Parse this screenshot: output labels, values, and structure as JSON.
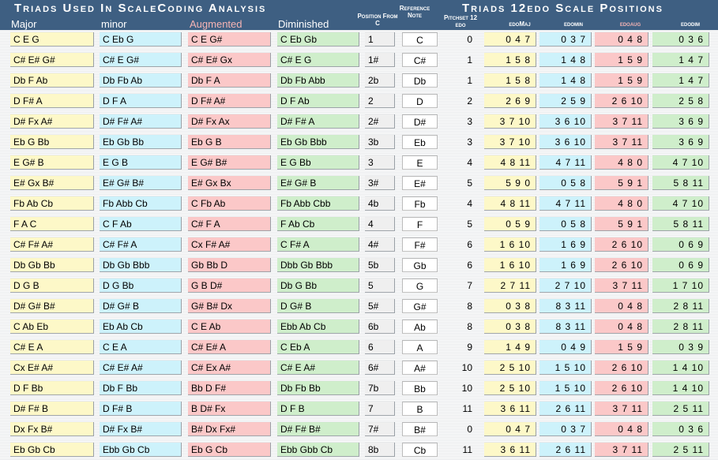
{
  "title_left": "Triads Used In ScaleCoding Analysis",
  "title_right": "Triads 12edo Scale Positions",
  "headers": {
    "major": "Major",
    "minor": "minor",
    "augmented": "Augmented",
    "diminished": "Diminished",
    "position": "Position From C",
    "reference": "Reference Note",
    "pitchset": "Pitchset 12 edo",
    "edomaj": "edoMaj",
    "edomin": "edomin",
    "edoaug": "edoaug",
    "edodim": "edodim"
  },
  "colors": {
    "header_bg": "#3e5f82",
    "major": "#fdf8c8",
    "minor": "#cdf2fb",
    "augmented": "#fbc8c8",
    "diminished": "#cfeecb",
    "augmented_header_text": "#f6b4b4"
  },
  "rows": [
    {
      "maj": "C E G",
      "min": "C Eb G",
      "aug": "C E G#",
      "dim": "C Eb Gb",
      "pos": "1",
      "ref": "C",
      "pit": "0",
      "emaj": "0 4 7",
      "emin": "0 3 7",
      "eaug": "0 4 8",
      "edim": "0 3 6"
    },
    {
      "maj": "C# E# G#",
      "min": "C# E G#",
      "aug": "C# E# Gx",
      "dim": "C# E G",
      "pos": "1#",
      "ref": "C#",
      "pit": "1",
      "emaj": "1 5 8",
      "emin": "1 4 8",
      "eaug": "1 5 9",
      "edim": "1 4 7"
    },
    {
      "maj": "Db F Ab",
      "min": "Db Fb Ab",
      "aug": "Db F A",
      "dim": "Db Fb Abb",
      "pos": "2b",
      "ref": "Db",
      "pit": "1",
      "emaj": "1 5 8",
      "emin": "1 4 8",
      "eaug": "1 5 9",
      "edim": "1 4 7"
    },
    {
      "maj": "D F# A",
      "min": "D F A",
      "aug": "D F# A#",
      "dim": "D F Ab",
      "pos": "2",
      "ref": "D",
      "pit": "2",
      "emaj": "2 6 9",
      "emin": "2 5 9",
      "eaug": "2 6 10",
      "edim": "2 5 8"
    },
    {
      "maj": "D# Fx A#",
      "min": "D# F# A#",
      "aug": "D# Fx Ax",
      "dim": "D# F# A",
      "pos": "2#",
      "ref": "D#",
      "pit": "3",
      "emaj": "3 7 10",
      "emin": "3 6 10",
      "eaug": "3 7 11",
      "edim": "3 6 9"
    },
    {
      "maj": "Eb G Bb",
      "min": "Eb Gb Bb",
      "aug": "Eb G B",
      "dim": "Eb Gb Bbb",
      "pos": "3b",
      "ref": "Eb",
      "pit": "3",
      "emaj": "3 7 10",
      "emin": "3 6 10",
      "eaug": "3 7 11",
      "edim": "3 6 9"
    },
    {
      "maj": "E G# B",
      "min": "E G B",
      "aug": "E G# B#",
      "dim": "E G Bb",
      "pos": "3",
      "ref": "E",
      "pit": "4",
      "emaj": "4 8 11",
      "emin": "4 7 11",
      "eaug": "4 8 0",
      "edim": "4 7 10"
    },
    {
      "maj": "E# Gx B#",
      "min": "E# G# B#",
      "aug": "E# Gx Bx",
      "dim": "E# G# B",
      "pos": "3#",
      "ref": "E#",
      "pit": "5",
      "emaj": "5 9 0",
      "emin": "0 5 8",
      "eaug": "5 9 1",
      "edim": "5 8 11"
    },
    {
      "maj": "Fb Ab Cb",
      "min": "Fb Abb Cb",
      "aug": "C Fb Ab",
      "dim": "Fb Abb Cbb",
      "pos": "4b",
      "ref": "Fb",
      "pit": "4",
      "emaj": "4 8 11",
      "emin": "4 7 11",
      "eaug": "4 8 0",
      "edim": "4 7 10"
    },
    {
      "maj": "F A C",
      "min": "C F Ab",
      "aug": "C# F A",
      "dim": "F Ab Cb",
      "pos": "4",
      "ref": "F",
      "pit": "5",
      "emaj": "0 5 9",
      "emin": "0 5 8",
      "eaug": "5 9 1",
      "edim": "5 8 11"
    },
    {
      "maj": "C# F# A#",
      "min": "C# F# A",
      "aug": "Cx F# A#",
      "dim": "C F# A",
      "pos": "4#",
      "ref": "F#",
      "pit": "6",
      "emaj": "1 6 10",
      "emin": "1 6 9",
      "eaug": "2 6 10",
      "edim": "0 6 9"
    },
    {
      "maj": "Db Gb Bb",
      "min": "Db Gb Bbb",
      "aug": "Gb Bb D",
      "dim": "Dbb Gb Bbb",
      "pos": "5b",
      "ref": "Gb",
      "pit": "6",
      "emaj": "1 6 10",
      "emin": "1 6 9",
      "eaug": "2 6 10",
      "edim": "0 6 9"
    },
    {
      "maj": "D G B",
      "min": "D G Bb",
      "aug": "G B D#",
      "dim": "Db G Bb",
      "pos": "5",
      "ref": "G",
      "pit": "7",
      "emaj": "2 7 11",
      "emin": "2 7 10",
      "eaug": "3 7 11",
      "edim": "1 7 10"
    },
    {
      "maj": "D# G# B#",
      "min": "D# G# B",
      "aug": "G# B# Dx",
      "dim": "D G# B",
      "pos": "5#",
      "ref": "G#",
      "pit": "8",
      "emaj": "0 3 8",
      "emin": "8 3 11",
      "eaug": "0 4 8",
      "edim": "2 8 11"
    },
    {
      "maj": "C Ab Eb",
      "min": "Eb Ab Cb",
      "aug": "C E Ab",
      "dim": "Ebb Ab Cb",
      "pos": "6b",
      "ref": "Ab",
      "pit": "8",
      "emaj": "0 3 8",
      "emin": "8 3 11",
      "eaug": "0 4 8",
      "edim": "2 8 11"
    },
    {
      "maj": "C# E A",
      "min": "C E A",
      "aug": "C# E# A",
      "dim": "C Eb A",
      "pos": "6",
      "ref": "A",
      "pit": "9",
      "emaj": "1 4 9",
      "emin": "0 4 9",
      "eaug": "1 5 9",
      "edim": "0 3 9"
    },
    {
      "maj": "Cx E# A#",
      "min": "C# E# A#",
      "aug": "C# Ex A#",
      "dim": "C# E A#",
      "pos": "6#",
      "ref": "A#",
      "pit": "10",
      "emaj": "2 5 10",
      "emin": "1 5 10",
      "eaug": "2 6 10",
      "edim": "1 4 10"
    },
    {
      "maj": "D F Bb",
      "min": "Db F Bb",
      "aug": "Bb D F#",
      "dim": "Db Fb Bb",
      "pos": "7b",
      "ref": "Bb",
      "pit": "10",
      "emaj": "2 5 10",
      "emin": "1 5 10",
      "eaug": "2 6 10",
      "edim": "1 4 10"
    },
    {
      "maj": "D# F# B",
      "min": "D F# B",
      "aug": "B D# Fx",
      "dim": "D F B",
      "pos": "7",
      "ref": "B",
      "pit": "11",
      "emaj": "3 6 11",
      "emin": "2 6 11",
      "eaug": "3 7 11",
      "edim": "2 5 11"
    },
    {
      "maj": "Dx Fx B#",
      "min": "D# Fx B#",
      "aug": "B# Dx Fx#",
      "dim": "D# F# B#",
      "pos": "7#",
      "ref": "B#",
      "pit": "0",
      "emaj": "0 4 7",
      "emin": "0 3 7",
      "eaug": "0 4 8",
      "edim": "0 3 6"
    },
    {
      "maj": "Eb Gb Cb",
      "min": "Ebb Gb Cb",
      "aug": "Eb G Cb",
      "dim": "Ebb Gbb Cb",
      "pos": "8b",
      "ref": "Cb",
      "pit": "11",
      "emaj": "3 6 11",
      "emin": "2 6 11",
      "eaug": "3 7 11",
      "edim": "2 5 11"
    }
  ]
}
